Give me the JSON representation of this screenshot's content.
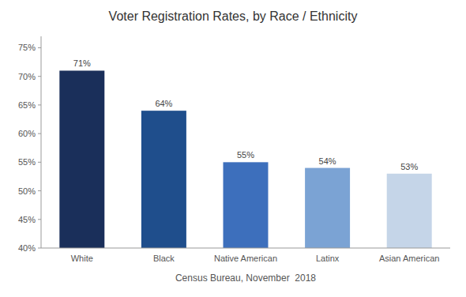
{
  "chart_data": {
    "type": "bar",
    "title": "Voter Registration Rates, by Race / Ethnicity",
    "categories": [
      "White",
      "Black",
      "Native American",
      "Latinx",
      "Asian American"
    ],
    "values": [
      71,
      64,
      55,
      54,
      53
    ],
    "value_labels": [
      "71%",
      "64%",
      "55%",
      "54%",
      "53%"
    ],
    "colors": [
      "#1a2f5a",
      "#1f4e8c",
      "#3d6fbc",
      "#7ba3d4",
      "#c5d5e8"
    ],
    "xlabel": "Census Bureau, November  2018",
    "ylim": [
      40,
      77
    ],
    "yticks": [
      {
        "value": 40,
        "label": "40%"
      },
      {
        "value": 45,
        "label": "45%"
      },
      {
        "value": 50,
        "label": "50%"
      },
      {
        "value": 55,
        "label": "55%"
      },
      {
        "value": 60,
        "label": "60%"
      },
      {
        "value": 65,
        "label": "65%"
      },
      {
        "value": 70,
        "label": "70%"
      },
      {
        "value": 75,
        "label": "75%"
      }
    ],
    "grid": false,
    "data_labels": true
  }
}
